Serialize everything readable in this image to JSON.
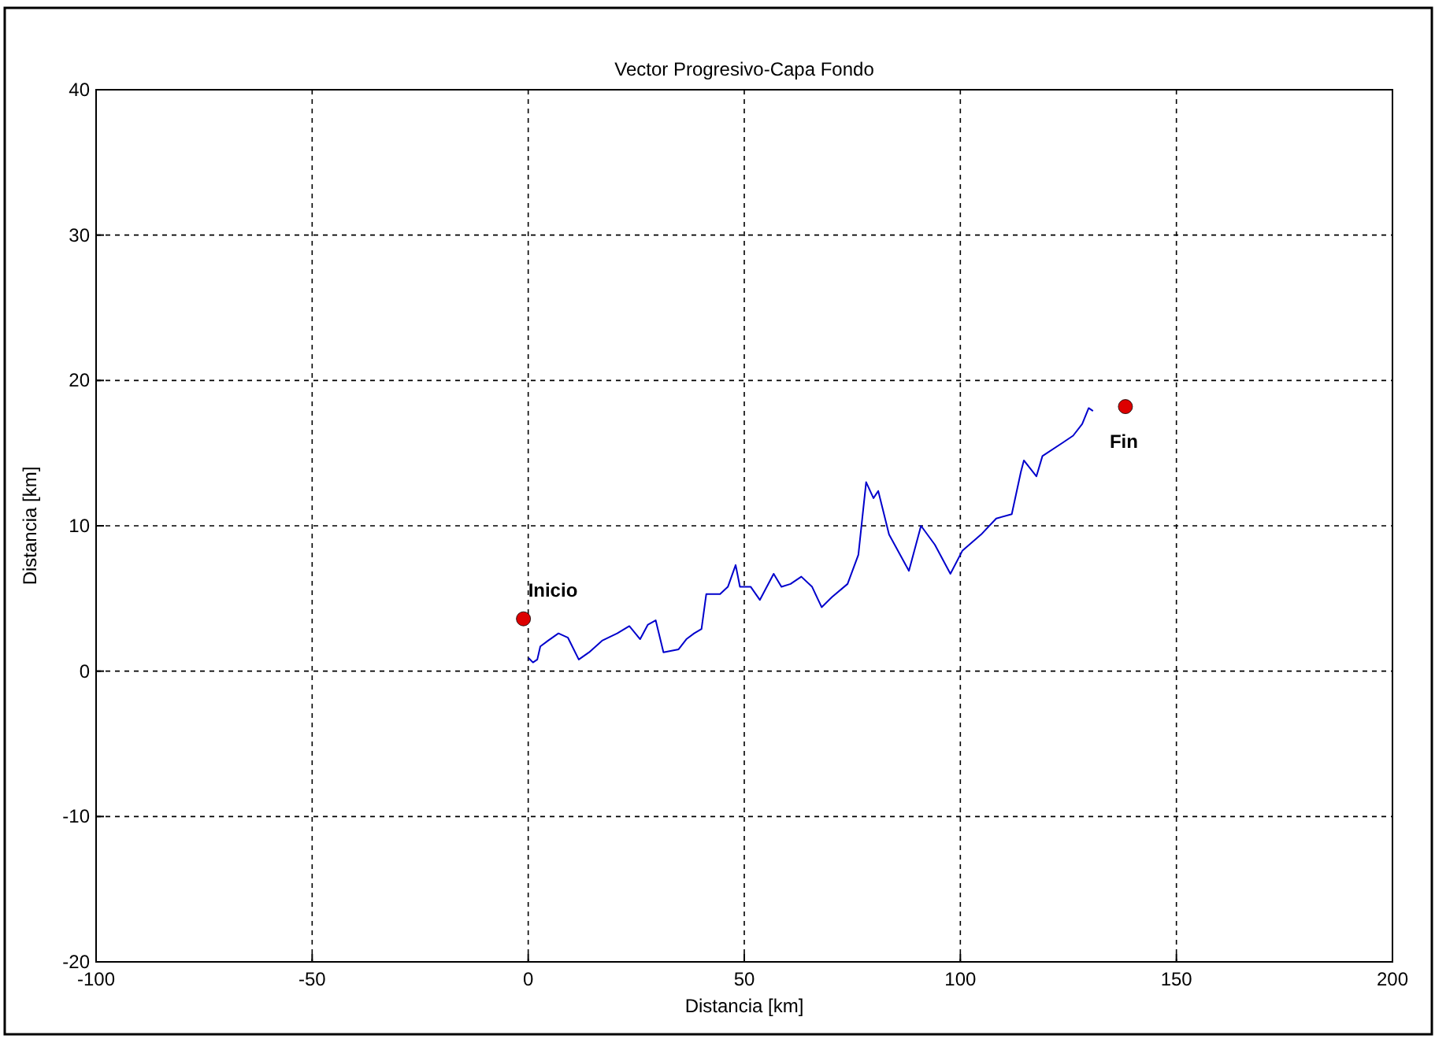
{
  "chart_data": {
    "type": "line",
    "title": "Vector Progresivo-Capa Fondo",
    "xlabel": "Distancia [km]",
    "ylabel": "Distancia [km]",
    "xlim": [
      -100,
      200
    ],
    "xticks": [
      -100,
      -50,
      0,
      50,
      100,
      150,
      200
    ],
    "ylim": [
      -20,
      40
    ],
    "yticks": [
      -20,
      -10,
      0,
      10,
      20,
      30,
      40
    ],
    "grid": true,
    "series": [
      {
        "color": "#0000cc",
        "x": [
          0.1,
          1.1,
          2.1,
          2.8,
          4.6,
          7.0,
          9.2,
          11.7,
          14.1,
          17.1,
          20.6,
          23.4,
          25.9,
          27.7,
          29.5,
          31.3,
          34.8,
          36.6,
          38.4,
          40.1,
          41.2,
          44.4,
          46.2,
          48.0,
          49.0,
          51.5,
          53.6,
          56.8,
          58.6,
          60.7,
          63.2,
          65.7,
          67.9,
          70.3,
          73.9,
          76.4,
          78.2,
          79.9,
          81.0,
          83.5,
          88.1,
          90.9,
          94.1,
          97.7,
          100.5,
          104.8,
          108.3,
          111.9,
          114.0,
          114.7,
          117.6,
          119.0,
          123.6,
          126.1,
          128.2,
          129.7,
          130.7
        ],
        "values": [
          0.9,
          0.6,
          0.8,
          1.7,
          2.1,
          2.6,
          2.3,
          0.8,
          1.3,
          2.1,
          2.6,
          3.1,
          2.2,
          3.2,
          3.5,
          1.3,
          1.5,
          2.2,
          2.6,
          2.9,
          5.3,
          5.3,
          5.8,
          7.3,
          5.8,
          5.8,
          4.9,
          6.7,
          5.8,
          6.0,
          6.5,
          5.8,
          4.4,
          5.1,
          6.0,
          8.0,
          13.0,
          11.9,
          12.4,
          9.4,
          6.9,
          10.0,
          8.7,
          6.7,
          8.3,
          9.4,
          10.5,
          10.8,
          13.7,
          14.5,
          13.4,
          14.8,
          15.7,
          16.2,
          17.0,
          18.1,
          17.9
        ]
      },
      {
        "type": "scatter",
        "color": "#dd0000",
        "marker": "circle",
        "x": [
          -1.1,
          138.2
        ],
        "values": [
          3.6,
          18.2
        ]
      }
    ],
    "annotations": [
      {
        "text": "Inicio",
        "x": -1.1,
        "y": 3.6
      },
      {
        "text": "Fin",
        "x": 138.2,
        "y": 18.2
      }
    ]
  }
}
